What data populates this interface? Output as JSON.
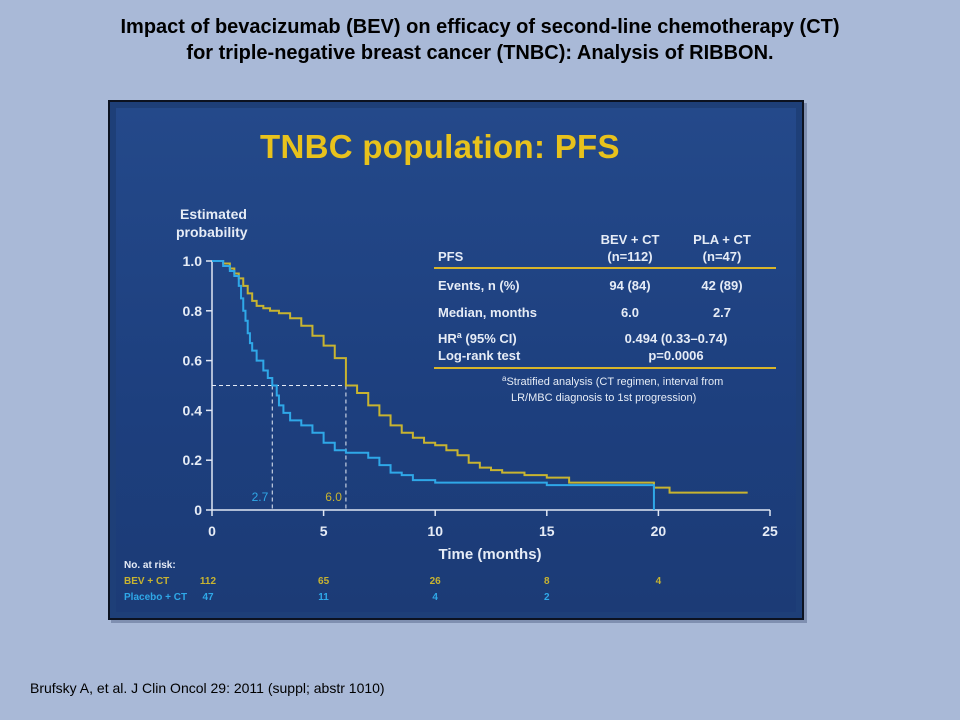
{
  "page": {
    "title_line1": "Impact of bevacizumab (BEV) on efficacy of second-line chemotherapy (CT)",
    "title_line2": "for triple-negative breast cancer (TNBC): Analysis of RIBBON.",
    "citation": "Brufsky A, et al. J Clin Oncol 29: 2011 (suppl; abstr 1010)"
  },
  "slide": {
    "title": "TNBC population: PFS"
  },
  "colors": {
    "bev_ct": "#c8b430",
    "placebo_ct": "#2fa8e8",
    "slide_bg": "#1e3f78",
    "title_yellow": "#e8c21c"
  },
  "chart_data": {
    "type": "line",
    "ylabel": "Estimated probability",
    "xlabel": "Time (months)",
    "xlim": [
      0,
      25
    ],
    "ylim": [
      0,
      1.0
    ],
    "xticks": [
      "0",
      "5",
      "10",
      "15",
      "20",
      "25"
    ],
    "yticks": [
      "0",
      "0.2",
      "0.4",
      "0.6",
      "0.8",
      "1.0"
    ],
    "series": [
      {
        "name": "BEV + CT",
        "color": "#c8b430",
        "median": 6.0,
        "points": [
          [
            0,
            1.0
          ],
          [
            0.5,
            0.99
          ],
          [
            0.8,
            0.97
          ],
          [
            1.0,
            0.95
          ],
          [
            1.2,
            0.93
          ],
          [
            1.4,
            0.9
          ],
          [
            1.6,
            0.87
          ],
          [
            1.8,
            0.84
          ],
          [
            2.0,
            0.82
          ],
          [
            2.3,
            0.81
          ],
          [
            2.6,
            0.8
          ],
          [
            3.0,
            0.79
          ],
          [
            3.5,
            0.77
          ],
          [
            4.0,
            0.74
          ],
          [
            4.5,
            0.7
          ],
          [
            5.0,
            0.66
          ],
          [
            5.5,
            0.61
          ],
          [
            6.0,
            0.5
          ],
          [
            6.5,
            0.47
          ],
          [
            7.0,
            0.42
          ],
          [
            7.5,
            0.38
          ],
          [
            8.0,
            0.34
          ],
          [
            8.5,
            0.31
          ],
          [
            9.0,
            0.29
          ],
          [
            9.5,
            0.27
          ],
          [
            10.0,
            0.26
          ],
          [
            10.5,
            0.24
          ],
          [
            11.0,
            0.22
          ],
          [
            11.5,
            0.19
          ],
          [
            12.0,
            0.17
          ],
          [
            12.5,
            0.16
          ],
          [
            13.0,
            0.15
          ],
          [
            14.0,
            0.14
          ],
          [
            15.0,
            0.13
          ],
          [
            16.0,
            0.11
          ],
          [
            17.0,
            0.11
          ],
          [
            18.0,
            0.11
          ],
          [
            19.8,
            0.09
          ],
          [
            20.5,
            0.07
          ],
          [
            24.0,
            0.07
          ]
        ]
      },
      {
        "name": "Placebo + CT",
        "color": "#2fa8e8",
        "median": 2.7,
        "points": [
          [
            0,
            1.0
          ],
          [
            0.5,
            0.98
          ],
          [
            0.8,
            0.96
          ],
          [
            1.0,
            0.94
          ],
          [
            1.2,
            0.9
          ],
          [
            1.3,
            0.85
          ],
          [
            1.4,
            0.8
          ],
          [
            1.5,
            0.76
          ],
          [
            1.6,
            0.71
          ],
          [
            1.7,
            0.67
          ],
          [
            1.8,
            0.64
          ],
          [
            2.0,
            0.6
          ],
          [
            2.3,
            0.56
          ],
          [
            2.5,
            0.53
          ],
          [
            2.7,
            0.5
          ],
          [
            2.9,
            0.46
          ],
          [
            3.0,
            0.42
          ],
          [
            3.2,
            0.39
          ],
          [
            3.5,
            0.36
          ],
          [
            4.0,
            0.34
          ],
          [
            4.5,
            0.31
          ],
          [
            5.0,
            0.27
          ],
          [
            5.5,
            0.24
          ],
          [
            6.0,
            0.23
          ],
          [
            7.0,
            0.21
          ],
          [
            7.5,
            0.18
          ],
          [
            8.0,
            0.15
          ],
          [
            8.5,
            0.14
          ],
          [
            9.0,
            0.12
          ],
          [
            10.0,
            0.11
          ],
          [
            12.0,
            0.11
          ],
          [
            15.0,
            0.1
          ],
          [
            19.0,
            0.1
          ],
          [
            19.8,
            0.1
          ],
          [
            19.8,
            0.0
          ]
        ]
      }
    ],
    "median_labels": [
      "2.7",
      "6.0"
    ],
    "median_line_y": 0.5,
    "at_risk": {
      "header": "No. at risk:",
      "rows": [
        {
          "label": "BEV + CT",
          "values": [
            "112",
            "65",
            "26",
            "8",
            "4"
          ]
        },
        {
          "label": "Placebo + CT",
          "values": [
            "47",
            "11",
            "4",
            "2"
          ]
        }
      ]
    },
    "table": {
      "header": [
        "PFS",
        "BEV + CT\n(n=112)",
        "PLA + CT\n(n=47)"
      ],
      "col_headers": {
        "bev_line1": "BEV + CT",
        "bev_line2": "(n=112)",
        "pla_line1": "PLA + CT",
        "pla_line2": "(n=47)"
      },
      "rows": [
        {
          "label": "Events, n (%)",
          "bev": "94 (84)",
          "pla": "42 (89)"
        },
        {
          "label": "Median, months",
          "bev": "6.0",
          "pla": "2.7"
        }
      ],
      "hr_label": "HR",
      "hr_sup": "a",
      "hr_label_rest": " (95% CI)",
      "hr_value": "0.494 (0.33–0.74)",
      "logrank_label": "Log-rank test",
      "logrank_value": "p=0.0006",
      "footnote_line1": "Stratified analysis (CT regimen, interval from",
      "footnote_line2": "LR/MBC diagnosis to 1st progression)",
      "footnote_mark": "a"
    }
  }
}
